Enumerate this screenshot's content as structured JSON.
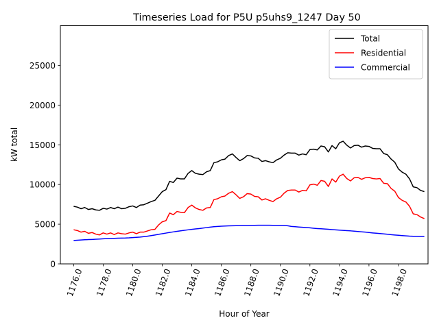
{
  "chart_data": {
    "type": "line",
    "title": "Timeseries Load for P5U p5uhs9_1247  Day 50",
    "xlabel": "Hour of Year",
    "ylabel": "kW total",
    "xlim": [
      1175.1,
      1200.0
    ],
    "ylim": [
      0,
      30000
    ],
    "x_ticks": [
      1176,
      1178,
      1180,
      1182,
      1184,
      1186,
      1188,
      1190,
      1192,
      1194,
      1196,
      1198
    ],
    "x_tick_labels": [
      "1176.0",
      "1178.0",
      "1180.0",
      "1182.0",
      "1184.0",
      "1186.0",
      "1188.0",
      "1190.0",
      "1192.0",
      "1194.0",
      "1196.0",
      "1198.0"
    ],
    "y_ticks": [
      0,
      5000,
      10000,
      15000,
      20000,
      25000
    ],
    "y_tick_labels": [
      "0",
      "5000",
      "10000",
      "15000",
      "20000",
      "25000"
    ],
    "legend_position": "top-right",
    "x_start": 1176.0,
    "x_step": 0.25,
    "series": [
      {
        "name": "Total",
        "color": "#000000",
        "values": [
          7250,
          7150,
          6950,
          7100,
          6850,
          6950,
          6800,
          6750,
          7000,
          6900,
          7100,
          6950,
          7150,
          6950,
          7000,
          7200,
          7300,
          7100,
          7400,
          7450,
          7650,
          7850,
          8000,
          8550,
          9100,
          9350,
          10400,
          10250,
          10800,
          10700,
          10700,
          11400,
          11750,
          11400,
          11300,
          11250,
          11600,
          11750,
          12750,
          12850,
          13100,
          13200,
          13650,
          13850,
          13400,
          13000,
          13250,
          13650,
          13600,
          13350,
          13300,
          12900,
          13000,
          12850,
          12750,
          13100,
          13300,
          13700,
          14000,
          13950,
          13950,
          13700,
          13850,
          13750,
          14400,
          14450,
          14350,
          14850,
          14750,
          14100,
          14900,
          14500,
          15250,
          15450,
          14950,
          14600,
          14900,
          14950,
          14700,
          14850,
          14800,
          14550,
          14500,
          14500,
          13900,
          13750,
          13200,
          12800,
          11950,
          11550,
          11300,
          10700,
          9700,
          9600,
          9250,
          9100
        ]
      },
      {
        "name": "Residential",
        "color": "#ff0000",
        "values": [
          4300,
          4200,
          4000,
          4100,
          3850,
          3950,
          3750,
          3650,
          3900,
          3750,
          3900,
          3700,
          3900,
          3800,
          3750,
          3900,
          4000,
          3800,
          4000,
          4000,
          4150,
          4300,
          4350,
          4900,
          5300,
          5450,
          6400,
          6200,
          6600,
          6500,
          6450,
          7100,
          7400,
          7050,
          6850,
          6750,
          7050,
          7100,
          8100,
          8200,
          8450,
          8550,
          8900,
          9100,
          8700,
          8250,
          8450,
          8850,
          8800,
          8500,
          8450,
          8050,
          8200,
          8000,
          7850,
          8200,
          8400,
          8900,
          9250,
          9300,
          9300,
          9050,
          9250,
          9200,
          9950,
          10050,
          9900,
          10500,
          10400,
          9750,
          10700,
          10300,
          11050,
          11300,
          10750,
          10450,
          10850,
          10900,
          10650,
          10850,
          10900,
          10750,
          10700,
          10750,
          10150,
          10100,
          9500,
          9150,
          8350,
          8000,
          7800,
          7250,
          6300,
          6200,
          5900,
          5700
        ]
      },
      {
        "name": "Commercial",
        "color": "#0000ff",
        "values": [
          2950,
          2980,
          3010,
          3040,
          3060,
          3080,
          3110,
          3130,
          3160,
          3180,
          3200,
          3220,
          3240,
          3250,
          3260,
          3280,
          3310,
          3340,
          3380,
          3430,
          3490,
          3560,
          3640,
          3720,
          3800,
          3880,
          3960,
          4030,
          4100,
          4170,
          4230,
          4290,
          4350,
          4400,
          4450,
          4510,
          4570,
          4630,
          4680,
          4720,
          4750,
          4770,
          4790,
          4800,
          4810,
          4820,
          4830,
          4840,
          4850,
          4860,
          4870,
          4870,
          4870,
          4870,
          4860,
          4860,
          4850,
          4830,
          4800,
          4720,
          4680,
          4640,
          4610,
          4580,
          4540,
          4490,
          4450,
          4420,
          4390,
          4360,
          4320,
          4280,
          4250,
          4220,
          4190,
          4160,
          4120,
          4080,
          4040,
          4000,
          3950,
          3900,
          3860,
          3820,
          3780,
          3730,
          3680,
          3640,
          3600,
          3560,
          3530,
          3500,
          3480,
          3470,
          3460,
          3450
        ]
      }
    ]
  }
}
